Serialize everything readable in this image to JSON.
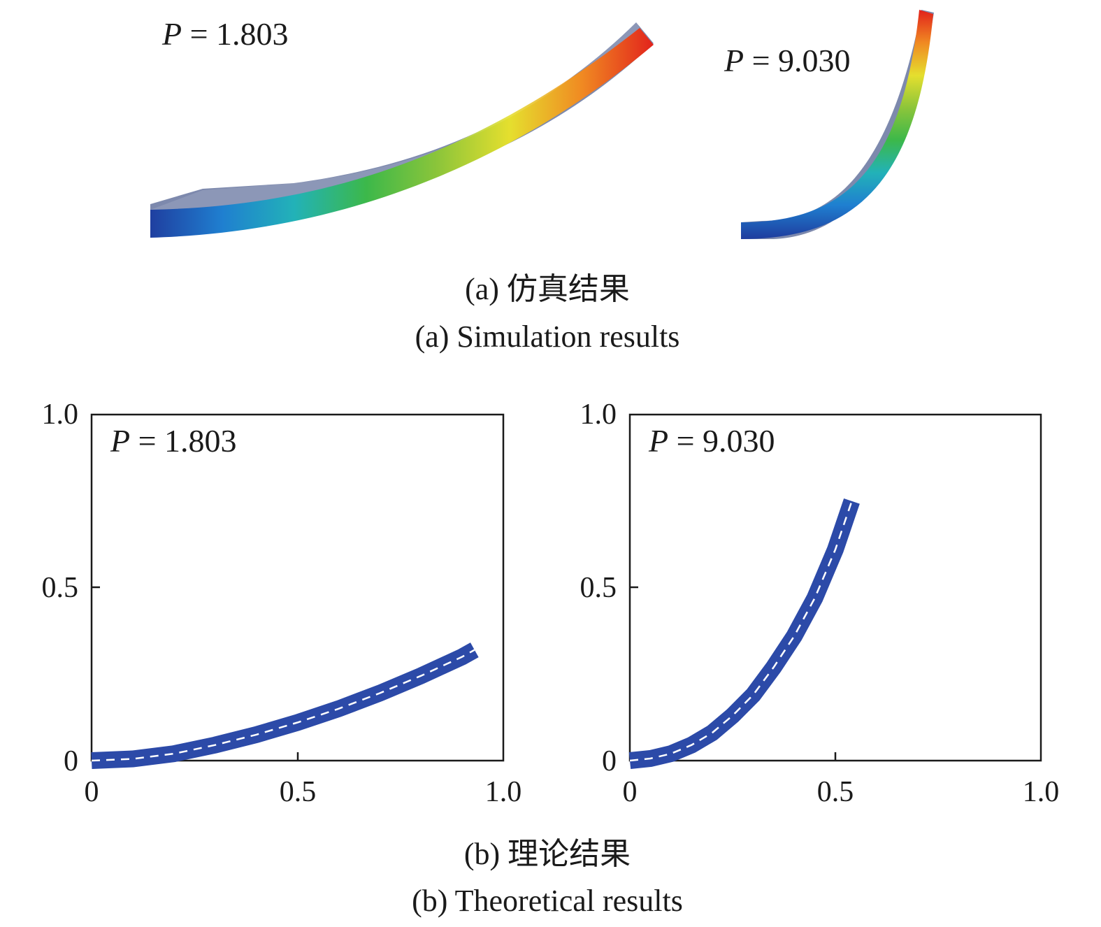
{
  "simulation": {
    "panels": [
      {
        "p_var": "P",
        "p_rest": " = 1.803"
      },
      {
        "p_var": "P",
        "p_rest": " = 9.030"
      }
    ],
    "caption_cn": "(a) 仿真结果",
    "caption_en": "(a) Simulation results"
  },
  "theoretical": {
    "caption_cn": "(b) 理论结果",
    "caption_en": "(b) Theoretical results"
  },
  "colors": {
    "beam": "#2c4aa8",
    "centerline": "#ffffff",
    "axis": "#1a1a1a",
    "colormap": [
      "#1f3fa0",
      "#1f7fd0",
      "#22b2b8",
      "#3cb84a",
      "#8cc53a",
      "#e5df2e",
      "#f08a22",
      "#e2231c"
    ]
  },
  "chart_data": [
    {
      "type": "line",
      "annotation_var": "P",
      "annotation_rest": " = 1.803",
      "xlim": [
        0,
        1.0
      ],
      "ylim": [
        0,
        1.0
      ],
      "xticks": [
        "0",
        "0.5",
        "1.0"
      ],
      "yticks": [
        "0",
        "0.5",
        "1.0"
      ],
      "grid": false,
      "series": [
        {
          "x": [
            0,
            0.1,
            0.2,
            0.3,
            0.4,
            0.5,
            0.6,
            0.7,
            0.8,
            0.9,
            0.93
          ],
          "y": [
            0,
            0.005,
            0.02,
            0.045,
            0.075,
            0.11,
            0.15,
            0.195,
            0.245,
            0.3,
            0.32
          ]
        }
      ]
    },
    {
      "type": "line",
      "annotation_var": "P",
      "annotation_rest": " = 9.030",
      "xlim": [
        0,
        1.0
      ],
      "ylim": [
        0,
        1.0
      ],
      "xticks": [
        "0",
        "0.5",
        "1.0"
      ],
      "yticks": [
        "0",
        "0.5",
        "1.0"
      ],
      "grid": false,
      "series": [
        {
          "x": [
            0,
            0.05,
            0.1,
            0.15,
            0.2,
            0.25,
            0.3,
            0.35,
            0.4,
            0.45,
            0.5,
            0.54
          ],
          "y": [
            0,
            0.006,
            0.02,
            0.045,
            0.08,
            0.13,
            0.19,
            0.27,
            0.36,
            0.47,
            0.61,
            0.75
          ]
        }
      ]
    }
  ]
}
